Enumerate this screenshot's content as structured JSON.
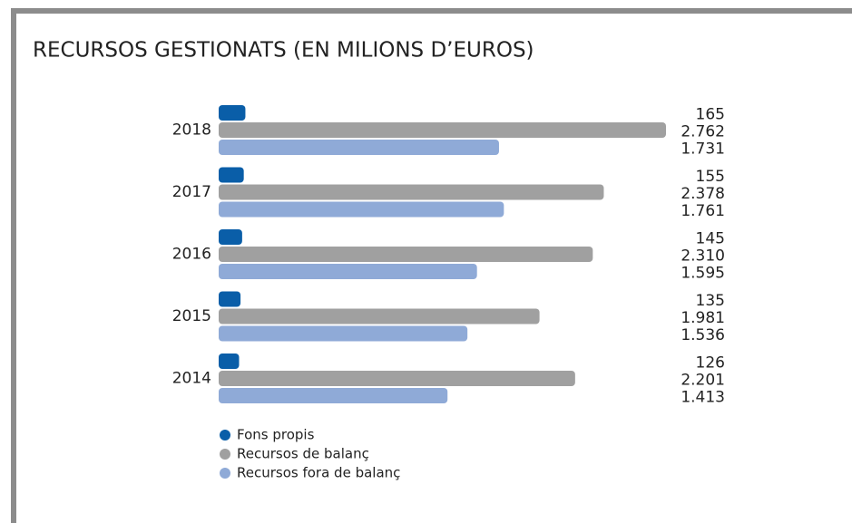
{
  "chart_data": {
    "type": "bar",
    "orientation": "horizontal",
    "title": "RECURSOS GESTIONATS (EN MILIONS D’EUROS)",
    "categories": [
      "2018",
      "2017",
      "2016",
      "2015",
      "2014"
    ],
    "series": [
      {
        "name": "Fons propis",
        "color": "#0a5ea8",
        "values": [
          165,
          155,
          145,
          135,
          126
        ],
        "value_labels": [
          "165",
          "155",
          "145",
          "135",
          "126"
        ]
      },
      {
        "name": "Recursos de balanç",
        "color": "#a0a0a0",
        "values": [
          2762,
          2378,
          2310,
          1981,
          2201
        ],
        "value_labels": [
          "2.762",
          "2.378",
          "2.310",
          "1.981",
          "2.201"
        ]
      },
      {
        "name": "Recursos fora de balanç",
        "color": "#8faad7",
        "values": [
          1731,
          1761,
          1595,
          1536,
          1413
        ],
        "value_labels": [
          "1.731",
          "1.761",
          "1.595",
          "1.536",
          "1.413"
        ]
      }
    ]
  }
}
